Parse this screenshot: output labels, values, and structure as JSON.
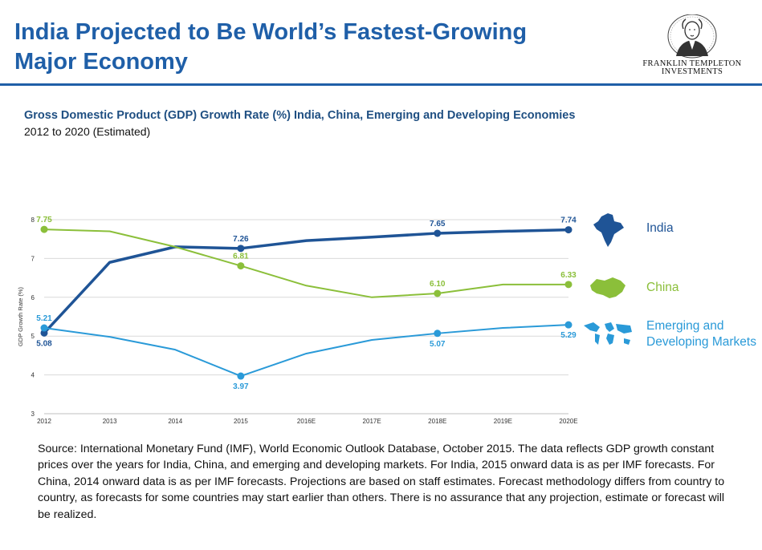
{
  "header": {
    "title_line1": "India Projected to Be World’s Fastest-Growing",
    "title_line2": "Major Economy",
    "logo_line1": "FRANKLIN TEMPLETON",
    "logo_line2": "INVESTMENTS"
  },
  "colors": {
    "brand_blue": "#1f5fa8",
    "india": "#1f5496",
    "china": "#8bbf3a",
    "emerging": "#2a9ad8"
  },
  "chart_data": {
    "type": "line",
    "title": "Gross Domestic Product (GDP) Growth Rate (%) India, China, Emerging and Developing Economies",
    "subtitle": "2012 to 2020 (Estimated)",
    "xlabel": "",
    "ylabel": "GDP Growth Rate (%)",
    "categories": [
      "2012",
      "2013",
      "2014",
      "2015",
      "2016E",
      "2017E",
      "2018E",
      "2019E",
      "2020E"
    ],
    "ylim": [
      3,
      8
    ],
    "yticks": [
      3,
      4,
      5,
      6,
      7,
      8
    ],
    "grid": true,
    "series": [
      {
        "name": "India",
        "color": "#1f5496",
        "icon": "india-map-icon",
        "values": [
          5.08,
          6.9,
          7.3,
          7.26,
          7.46,
          7.55,
          7.65,
          7.7,
          7.74
        ],
        "labeled": [
          {
            "i": 0,
            "text": "5.08",
            "pos": "below"
          },
          {
            "i": 3,
            "text": "7.26",
            "pos": "above"
          },
          {
            "i": 6,
            "text": "7.65",
            "pos": "above"
          },
          {
            "i": 8,
            "text": "7.74",
            "pos": "above"
          }
        ]
      },
      {
        "name": "China",
        "color": "#8bbf3a",
        "icon": "china-map-icon",
        "values": [
          7.75,
          7.7,
          7.3,
          6.81,
          6.3,
          6.0,
          6.1,
          6.33,
          6.33
        ],
        "labeled": [
          {
            "i": 0,
            "text": "7.75",
            "pos": "above"
          },
          {
            "i": 3,
            "text": "6.81",
            "pos": "above"
          },
          {
            "i": 6,
            "text": "6.10",
            "pos": "above"
          },
          {
            "i": 8,
            "text": "6.33",
            "pos": "above"
          }
        ]
      },
      {
        "name": "Emerging and Developing Markets",
        "color": "#2a9ad8",
        "icon": "world-map-icon",
        "values": [
          5.21,
          4.98,
          4.65,
          3.97,
          4.55,
          4.9,
          5.07,
          5.21,
          5.29
        ],
        "labeled": [
          {
            "i": 0,
            "text": "5.21",
            "pos": "above"
          },
          {
            "i": 3,
            "text": "3.97",
            "pos": "below"
          },
          {
            "i": 6,
            "text": "5.07",
            "pos": "below"
          },
          {
            "i": 8,
            "text": "5.29",
            "pos": "below"
          }
        ]
      }
    ],
    "legend": {
      "placement": "right",
      "entries": [
        {
          "lines": [
            "India"
          ],
          "color": "#1f5496",
          "icon": "india-map-icon"
        },
        {
          "lines": [
            "China"
          ],
          "color": "#8bbf3a",
          "icon": "china-map-icon"
        },
        {
          "lines": [
            "Emerging and",
            "Developing Markets"
          ],
          "color": "#2a9ad8",
          "icon": "world-map-icon"
        }
      ]
    }
  },
  "source_note": "Source: International Monetary Fund (IMF), World Economic Outlook Database, October 2015. The data reflects GDP growth constant prices over the years for India, China, and emerging and developing markets. For India, 2015 onward data is as per IMF forecasts. For China, 2014 onward data is as per IMF forecasts. Projections are based on staff estimates. Forecast methodology differs from country to country, as forecasts for some countries may start earlier than others. There is no assurance that any projection, estimate or forecast will be realized."
}
